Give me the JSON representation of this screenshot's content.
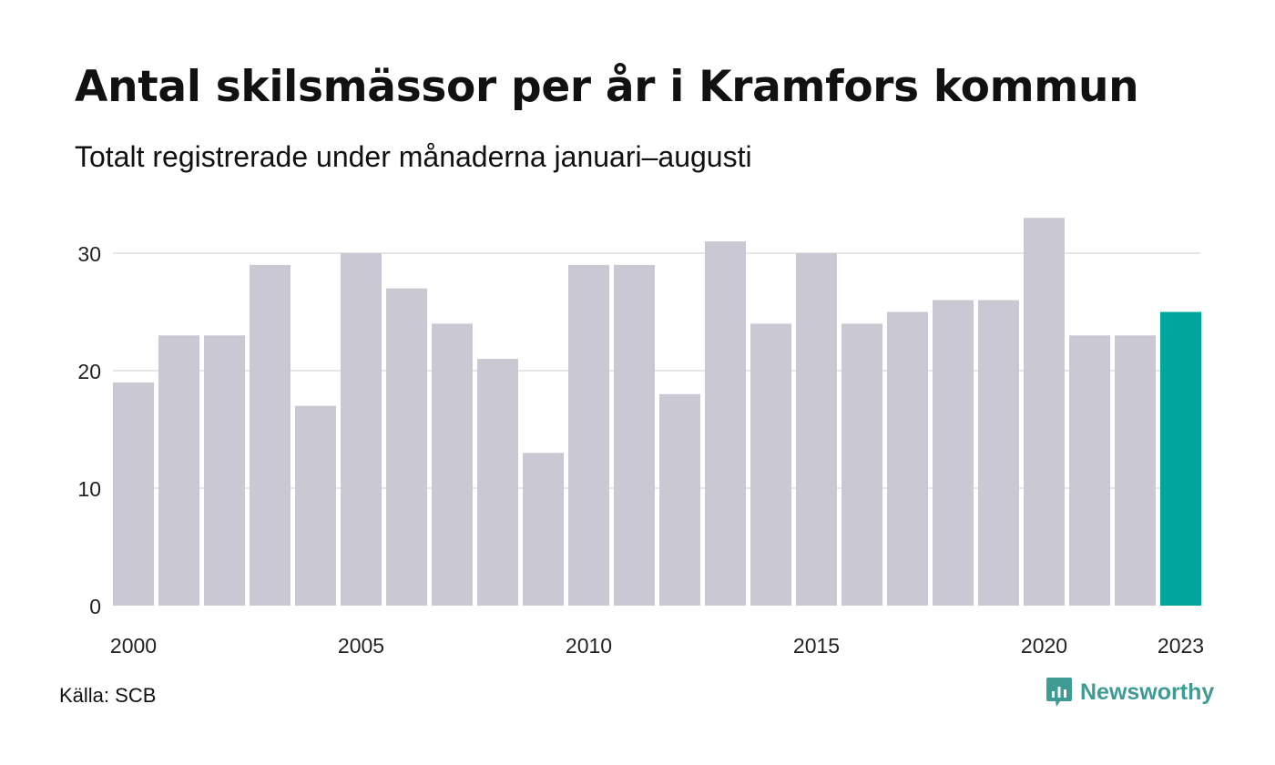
{
  "header": {
    "title": "Antal skilsmässor per år i Kramfors kommun",
    "subtitle": "Totalt registrerade under månaderna januari–augusti"
  },
  "footer": {
    "source": "Källa: SCB",
    "brand": "Newsworthy",
    "brand_icon": "newsworthy-logo-icon"
  },
  "colors": {
    "bar": "#c9c8d3",
    "highlight": "#00a69c",
    "grid": "#e6e6e6",
    "brand": "#3f9c94"
  },
  "chart_data": {
    "type": "bar",
    "categories": [
      "2000",
      "2001",
      "2002",
      "2003",
      "2004",
      "2005",
      "2006",
      "2007",
      "2008",
      "2009",
      "2010",
      "2011",
      "2012",
      "2013",
      "2014",
      "2015",
      "2016",
      "2017",
      "2018",
      "2019",
      "2020",
      "2021",
      "2022",
      "2023"
    ],
    "values": [
      19,
      23,
      23,
      29,
      17,
      30,
      27,
      24,
      21,
      13,
      29,
      29,
      18,
      31,
      24,
      30,
      24,
      25,
      26,
      26,
      33,
      23,
      23,
      25
    ],
    "highlight_category": "2023",
    "x_tick_labels": [
      "2000",
      "2005",
      "2010",
      "2015",
      "2020",
      "2023"
    ],
    "y_ticks": [
      0,
      10,
      20,
      30
    ],
    "ylim": [
      0,
      33
    ],
    "grid": true,
    "legend": "none"
  }
}
